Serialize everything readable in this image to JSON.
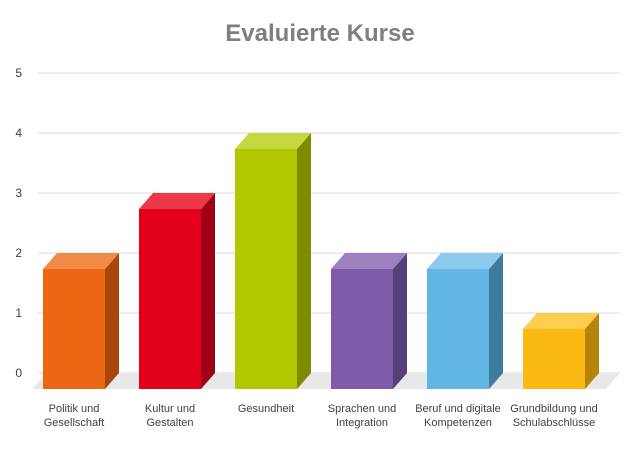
{
  "chart_data": {
    "type": "bar",
    "title": "Evaluierte Kurse",
    "xlabel": "",
    "ylabel": "",
    "ylim": [
      0,
      5
    ],
    "yticks": [
      0,
      1,
      2,
      3,
      4,
      5
    ],
    "grid": true,
    "legend": "none",
    "categories": [
      [
        "Politik und",
        "Gesellschaft"
      ],
      [
        "Kultur und",
        "Gestalten"
      ],
      [
        "Gesundheit"
      ],
      [
        "Sprachen und",
        "Integration"
      ],
      [
        "Beruf und digitale",
        "Kompetenzen"
      ],
      [
        "Grundbildung und",
        "Schulabschlüsse"
      ]
    ],
    "values": [
      2,
      3,
      4,
      2,
      2,
      1
    ],
    "colors": [
      "#ec6613",
      "#e3001b",
      "#afc800",
      "#7d5ba6",
      "#62b6e6",
      "#fbb914"
    ],
    "side_colors": [
      "#a8470c",
      "#a00014",
      "#7b8c00",
      "#56407a",
      "#3f7b9a",
      "#b68408"
    ],
    "top_colors": [
      "#f08a47",
      "#ea3a4a",
      "#c4d840",
      "#9d80bf",
      "#8cc9ec",
      "#fccd4f"
    ]
  }
}
